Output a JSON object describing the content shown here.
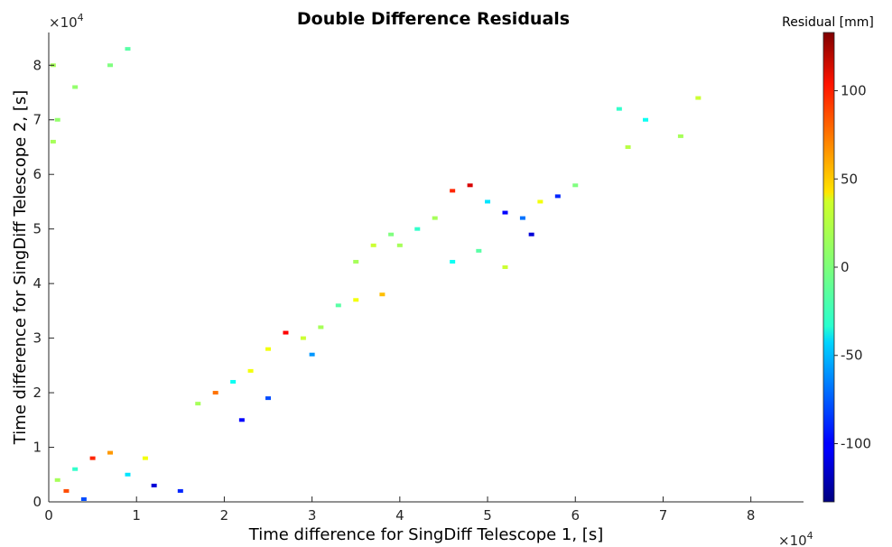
{
  "chart_data": {
    "type": "heatmap",
    "title": "Double Difference Residuals",
    "xlabel": "Time difference for SingDiff Telescope 1, [s]",
    "ylabel": "Time difference for SingDiff Telescope 2, [s]",
    "x_multiplier": {
      "base": "×10",
      "exp": "4"
    },
    "y_multiplier": {
      "base": "×10",
      "exp": "4"
    },
    "xlim": [
      0,
      86000
    ],
    "ylim": [
      0,
      86000
    ],
    "xticks": [
      0,
      1,
      2,
      3,
      4,
      5,
      6,
      7,
      8
    ],
    "yticks": [
      0,
      1,
      2,
      3,
      4,
      5,
      6,
      7,
      8
    ],
    "colorbar": {
      "label": "Residual [mm]",
      "range": [
        -133,
        133
      ],
      "ticks": [
        100,
        50,
        0,
        -50,
        -100
      ],
      "tick_labels": [
        "100",
        "50",
        "0",
        "-50",
        "-100"
      ],
      "colormap": "jet"
    },
    "grid": false,
    "points": [
      [
        1000,
        4000,
        10
      ],
      [
        3000,
        6000,
        -20
      ],
      [
        5000,
        8000,
        90
      ],
      [
        7000,
        9000,
        60
      ],
      [
        9000,
        5000,
        -40
      ],
      [
        12000,
        3000,
        -110
      ],
      [
        15000,
        2000,
        -90
      ],
      [
        2000,
        2000,
        80
      ],
      [
        4000,
        500,
        -80
      ],
      [
        11000,
        8000,
        30
      ],
      [
        17000,
        18000,
        10
      ],
      [
        19000,
        20000,
        70
      ],
      [
        21000,
        22000,
        -30
      ],
      [
        23000,
        24000,
        30
      ],
      [
        25000,
        28000,
        30
      ],
      [
        27000,
        31000,
        100
      ],
      [
        29000,
        30000,
        20
      ],
      [
        30000,
        27000,
        -60
      ],
      [
        22000,
        15000,
        -100
      ],
      [
        25000,
        19000,
        -80
      ],
      [
        31000,
        32000,
        10
      ],
      [
        33000,
        36000,
        -10
      ],
      [
        35000,
        37000,
        30
      ],
      [
        38000,
        38000,
        50
      ],
      [
        40000,
        47000,
        10
      ],
      [
        42000,
        50000,
        -20
      ],
      [
        44000,
        52000,
        10
      ],
      [
        46000,
        57000,
        90
      ],
      [
        48000,
        58000,
        110
      ],
      [
        50000,
        55000,
        -40
      ],
      [
        52000,
        53000,
        -100
      ],
      [
        54000,
        52000,
        -70
      ],
      [
        55000,
        49000,
        -110
      ],
      [
        56000,
        55000,
        30
      ],
      [
        58000,
        56000,
        -90
      ],
      [
        60000,
        58000,
        0
      ],
      [
        46000,
        44000,
        -30
      ],
      [
        49000,
        46000,
        -10
      ],
      [
        52000,
        43000,
        20
      ],
      [
        35000,
        44000,
        10
      ],
      [
        37000,
        47000,
        20
      ],
      [
        39000,
        49000,
        0
      ],
      [
        500,
        80000,
        10
      ],
      [
        3000,
        76000,
        5
      ],
      [
        7000,
        80000,
        0
      ],
      [
        9000,
        83000,
        -10
      ],
      [
        65000,
        72000,
        -20
      ],
      [
        68000,
        70000,
        -30
      ],
      [
        72000,
        67000,
        10
      ],
      [
        74000,
        74000,
        20
      ],
      [
        66000,
        65000,
        15
      ],
      [
        500,
        66000,
        10
      ],
      [
        1000,
        70000,
        5
      ]
    ]
  }
}
